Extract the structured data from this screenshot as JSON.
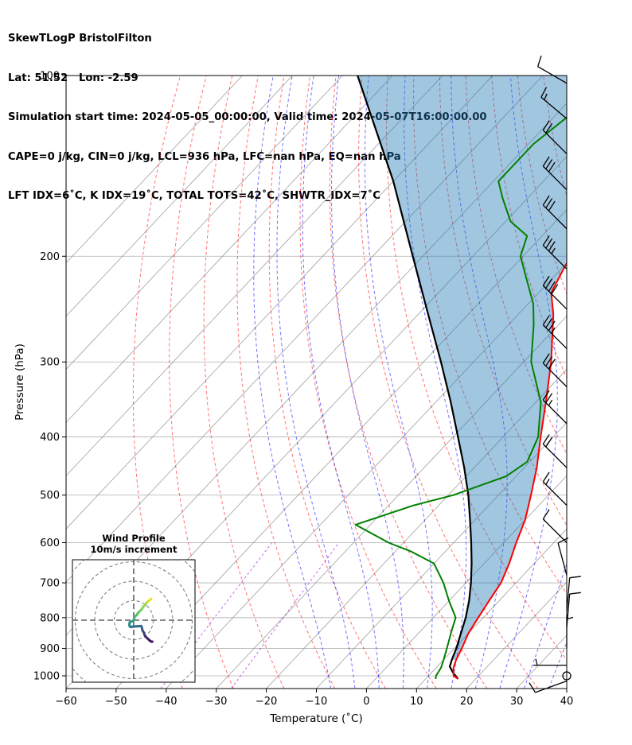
{
  "header": {
    "line1": "SkewTLogP BristolFilton",
    "line2": "Lat: 51.52   Lon: -2.59",
    "line3": "Simulation start time: 2024-05-05_00:00:00, Valid time: 2024-05-07T16:00:00.00",
    "line4": "CAPE=0 j/kg, CIN=0 j/kg, LCL=936 hPa, LFC=nan hPa, EQ=nan hPa",
    "line5": "LFT IDX=6˚C, K IDX=19˚C, TOTAL TOTS=42˚C, SHWTR_IDX=7˚C"
  },
  "hodograph": {
    "title_line1": "Wind Profile",
    "title_line2": "10m/s increment",
    "rings_ms": [
      10,
      20,
      30,
      40
    ],
    "colormap": [
      "#440154",
      "#3b528b",
      "#21918c",
      "#5ec962",
      "#fde725"
    ]
  },
  "colors": {
    "temperature": "#ff0000",
    "dewpoint": "#008000",
    "parcel": "#000000",
    "cape_fill": "#1f77b4",
    "dry_adiabat": "#ff0000",
    "moist_adiabat": "#0000ff",
    "mixing_ratio": "#9400d3",
    "isotherm": "#808080"
  },
  "chart_data": {
    "type": "skewt-logp",
    "xlabel": "Temperature (˚C)",
    "ylabel": "Pressure (hPa)",
    "xlim": [
      -60,
      40
    ],
    "ylim": [
      1050,
      100
    ],
    "x_ticks": [
      -60,
      -50,
      -40,
      -30,
      -20,
      -10,
      0,
      10,
      20,
      30,
      40
    ],
    "x_tick_labels": [
      "−60",
      "−50",
      "−40",
      "−30",
      "−20",
      "−10",
      "0",
      "10",
      "20",
      "30",
      "40"
    ],
    "y_ticks": [
      1000,
      900,
      800,
      700,
      600,
      500,
      400,
      300,
      200,
      100
    ],
    "y_tick_labels": [
      "1000",
      "900",
      "800",
      "700",
      "600",
      "500",
      "400",
      "300",
      "200",
      "100"
    ],
    "dry_adiabats_C": [
      -40,
      -30,
      -20,
      -10,
      0,
      10,
      20,
      30,
      40,
      50,
      60,
      70,
      80,
      90,
      100,
      110
    ],
    "moist_adiabats_C": [
      -10,
      -5,
      0,
      5,
      10,
      15,
      20,
      25,
      30,
      35,
      40
    ],
    "mixing_ratio_gkg": [
      0.1,
      0.4
    ],
    "isotherms_C": [
      -140,
      -130,
      -120,
      -110,
      -100,
      -90,
      -80,
      -70,
      -60,
      -50,
      -40,
      -30,
      -20,
      -10,
      0,
      10,
      20,
      30,
      40
    ],
    "temperature": [
      [
        1012,
        16.5
      ],
      [
        1000,
        15
      ],
      [
        970,
        13.5
      ],
      [
        940,
        12.5
      ],
      [
        900,
        11.5
      ],
      [
        850,
        10
      ],
      [
        800,
        9
      ],
      [
        750,
        8
      ],
      [
        700,
        7
      ],
      [
        650,
        5
      ],
      [
        600,
        2.5
      ],
      [
        550,
        0
      ],
      [
        500,
        -3.5
      ],
      [
        450,
        -7.5
      ],
      [
        400,
        -12.5
      ],
      [
        350,
        -18
      ],
      [
        300,
        -24.5
      ],
      [
        250,
        -33
      ],
      [
        230,
        -37.5
      ],
      [
        210,
        -39.5
      ],
      [
        190,
        -41.5
      ],
      [
        175,
        -41
      ],
      [
        160,
        -40
      ],
      [
        140,
        -40
      ],
      [
        120,
        -41
      ],
      [
        100,
        -43
      ]
    ],
    "dewpoint": [
      [
        1012,
        12
      ],
      [
        1000,
        11.5
      ],
      [
        970,
        11
      ],
      [
        940,
        10
      ],
      [
        900,
        8.5
      ],
      [
        850,
        6.5
      ],
      [
        800,
        4.5
      ],
      [
        750,
        0
      ],
      [
        700,
        -4.5
      ],
      [
        650,
        -10
      ],
      [
        620,
        -17
      ],
      [
        600,
        -23
      ],
      [
        560,
        -33
      ],
      [
        520,
        -25
      ],
      [
        500,
        -19
      ],
      [
        465,
        -12
      ],
      [
        440,
        -10.5
      ],
      [
        400,
        -13
      ],
      [
        350,
        -19
      ],
      [
        300,
        -28.5
      ],
      [
        260,
        -35
      ],
      [
        240,
        -39
      ],
      [
        220,
        -44.5
      ],
      [
        200,
        -50.5
      ],
      [
        185,
        -53
      ],
      [
        175,
        -59
      ],
      [
        160,
        -65
      ],
      [
        150,
        -69
      ],
      [
        130,
        -69
      ],
      [
        115,
        -67
      ],
      [
        100,
        -64
      ]
    ],
    "parcel": [
      [
        1012,
        16.5
      ],
      [
        990,
        14.5
      ],
      [
        965,
        12.5
      ],
      [
        936,
        11.5
      ],
      [
        900,
        10.4
      ],
      [
        850,
        8.5
      ],
      [
        800,
        6.5
      ],
      [
        750,
        4
      ],
      [
        700,
        1
      ],
      [
        650,
        -2.5
      ],
      [
        600,
        -6.5
      ],
      [
        550,
        -11
      ],
      [
        500,
        -16
      ],
      [
        450,
        -22
      ],
      [
        400,
        -29
      ],
      [
        350,
        -37
      ],
      [
        300,
        -46.5
      ],
      [
        250,
        -58
      ],
      [
        200,
        -72
      ],
      [
        150,
        -90
      ],
      [
        100,
        -117
      ]
    ],
    "wind_barbs": [
      {
        "p": 1020,
        "spd_kt": 10,
        "dir": 250
      },
      {
        "p": 1000,
        "spd_kt": 0,
        "dir": 0
      },
      {
        "p": 960,
        "spd_kt": 5,
        "dir": 270
      },
      {
        "p": 900,
        "spd_kt": 5,
        "dir": 0
      },
      {
        "p": 830,
        "spd_kt": 10,
        "dir": 5
      },
      {
        "p": 780,
        "spd_kt": 10,
        "dir": 5
      },
      {
        "p": 680,
        "spd_kt": 10,
        "dir": 345
      },
      {
        "p": 600,
        "spd_kt": 10,
        "dir": 315
      },
      {
        "p": 520,
        "spd_kt": 15,
        "dir": 315
      },
      {
        "p": 450,
        "spd_kt": 20,
        "dir": 315
      },
      {
        "p": 380,
        "spd_kt": 25,
        "dir": 315
      },
      {
        "p": 330,
        "spd_kt": 30,
        "dir": 315
      },
      {
        "p": 285,
        "spd_kt": 35,
        "dir": 315
      },
      {
        "p": 245,
        "spd_kt": 40,
        "dir": 315
      },
      {
        "p": 210,
        "spd_kt": 35,
        "dir": 315
      },
      {
        "p": 180,
        "spd_kt": 30,
        "dir": 315
      },
      {
        "p": 155,
        "spd_kt": 30,
        "dir": 315
      },
      {
        "p": 135,
        "spd_kt": 20,
        "dir": 315
      },
      {
        "p": 118,
        "spd_kt": 15,
        "dir": 310
      },
      {
        "p": 103,
        "spd_kt": 10,
        "dir": 300
      }
    ],
    "hodograph_uv": [
      [
        9.0,
        -11.0
      ],
      [
        8.5,
        -10.5
      ],
      [
        7.5,
        -9.8
      ],
      [
        6.6,
        -9.0
      ],
      [
        6.0,
        -8.0
      ],
      [
        5.0,
        -7.0
      ],
      [
        4.0,
        -5.5
      ],
      [
        3.0,
        -4.5
      ],
      [
        2.0,
        -3.5
      ],
      [
        1.5,
        -2.5
      ],
      [
        0.6,
        -2.0
      ],
      [
        0.3,
        -1.0
      ],
      [
        0.0,
        0.0
      ],
      [
        -1.0,
        0.7
      ],
      [
        -2.0,
        1.0
      ],
      [
        -2.2,
        2.0
      ],
      [
        -2.2,
        2.8
      ],
      [
        -1.8,
        3.4
      ],
      [
        -1.0,
        3.5
      ],
      [
        -0.7,
        3.3
      ],
      [
        3.8,
        3.0
      ],
      [
        4.1,
        3.5
      ],
      [
        4.3,
        4.5
      ],
      [
        4.6,
        5.5
      ],
      [
        5.3,
        6.5
      ],
      [
        5.5,
        7.4
      ],
      [
        6.0,
        8.4
      ],
      [
        7.0,
        9.3
      ],
      [
        8.0,
        10.3
      ],
      [
        9.0,
        11.0
      ],
      [
        9.5,
        11.0
      ]
    ]
  }
}
